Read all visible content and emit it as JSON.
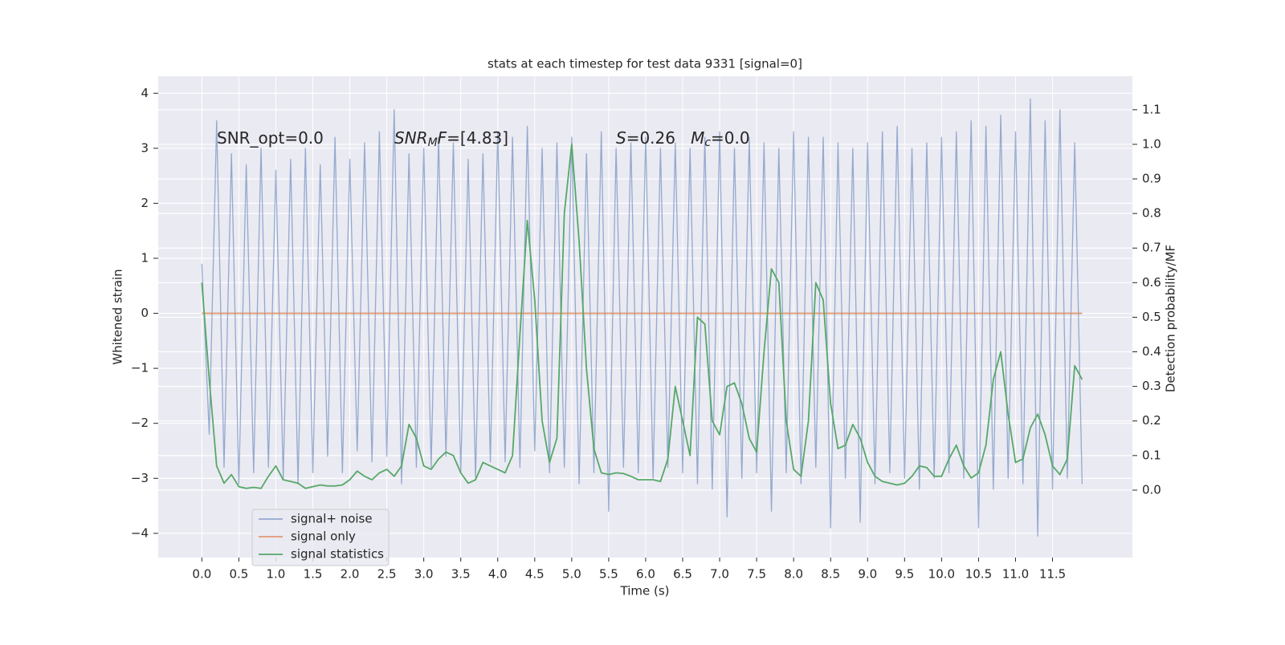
{
  "chart_data": {
    "type": "line",
    "title": "stats at each timestep for test data 9331 [signal=0]",
    "xlabel": "Time (s)",
    "ylabel": "Whitened strain",
    "y2label": "Detection probability/MF",
    "annotations": [
      [
        {
          "text": "SNR_opt=0.0"
        }
      ],
      [
        {
          "text": "SNR",
          "italic": true
        },
        {
          "text": "M",
          "italic": true,
          "sub": true
        },
        {
          "text": "F",
          "italic": true
        },
        {
          "text": "=[4.83]"
        }
      ],
      [
        {
          "text": "S",
          "italic": true
        },
        {
          "text": "=0.26   "
        },
        {
          "text": "M",
          "italic": true
        },
        {
          "text": "c",
          "italic": true,
          "sub": true
        },
        {
          "text": "=0.0"
        }
      ]
    ],
    "x": [
      0,
      0.1,
      0.2,
      0.3,
      0.4,
      0.5,
      0.6,
      0.7,
      0.8,
      0.9,
      1,
      1.1,
      1.2,
      1.3,
      1.4,
      1.5,
      1.6,
      1.7,
      1.8,
      1.9,
      2,
      2.1,
      2.2,
      2.3,
      2.4,
      2.5,
      2.6,
      2.7,
      2.8,
      2.9,
      3,
      3.1,
      3.2,
      3.3,
      3.4,
      3.5,
      3.6,
      3.7,
      3.8,
      3.9,
      4,
      4.1,
      4.2,
      4.3,
      4.4,
      4.5,
      4.6,
      4.7,
      4.8,
      4.9,
      5,
      5.1,
      5.2,
      5.3,
      5.4,
      5.5,
      5.6,
      5.7,
      5.8,
      5.9,
      6,
      6.1,
      6.2,
      6.3,
      6.4,
      6.5,
      6.6,
      6.7,
      6.8,
      6.9,
      7,
      7.1,
      7.2,
      7.3,
      7.4,
      7.5,
      7.6,
      7.7,
      7.8,
      7.9,
      8,
      8.1,
      8.2,
      8.3,
      8.4,
      8.5,
      8.6,
      8.7,
      8.8,
      8.9,
      9,
      9.1,
      9.2,
      9.3,
      9.4,
      9.5,
      9.6,
      9.7,
      9.8,
      9.9,
      10,
      10.1,
      10.2,
      10.3,
      10.4,
      10.5,
      10.6,
      10.7,
      10.8,
      10.9,
      11,
      11.1,
      11.2,
      11.3,
      11.4,
      11.5,
      11.6,
      11.7,
      11.8,
      11.9
    ],
    "series": [
      {
        "name": "signal+ noise",
        "color": "#4c72b0",
        "opacity": 0.55,
        "axis": "y",
        "values": [
          0.9,
          -2.2,
          3.5,
          -2.8,
          2.9,
          -3.1,
          2.7,
          -2.9,
          3.0,
          -2.8,
          2.6,
          -3.0,
          2.8,
          -3.1,
          3.0,
          -2.9,
          2.7,
          -2.6,
          3.2,
          -2.9,
          2.8,
          -2.5,
          3.1,
          -2.7,
          3.3,
          -2.6,
          3.7,
          -3.1,
          2.9,
          -2.8,
          3.0,
          -2.8,
          3.2,
          -2.6,
          3.1,
          -2.9,
          2.8,
          -3.0,
          2.9,
          -2.7,
          3.3,
          -2.7,
          3.2,
          -2.8,
          3.4,
          -2.5,
          3.0,
          -2.9,
          3.1,
          -2.8,
          3.2,
          -3.1,
          2.9,
          -2.9,
          3.3,
          -3.6,
          3.0,
          -2.8,
          3.1,
          -2.9,
          3.2,
          -3.0,
          3.0,
          -2.8,
          3.1,
          -2.9,
          3.0,
          -3.1,
          3.2,
          -3.2,
          3.3,
          -3.7,
          3.0,
          -3.0,
          3.2,
          -2.9,
          3.1,
          -3.6,
          3.0,
          -2.9,
          3.3,
          -3.1,
          3.2,
          -2.8,
          3.2,
          -3.9,
          3.1,
          -3.0,
          3.0,
          -3.8,
          3.1,
          -3.1,
          3.3,
          -2.9,
          3.4,
          -3.0,
          3.0,
          -3.2,
          3.1,
          -3.0,
          3.2,
          -2.9,
          3.3,
          -3.0,
          3.5,
          -3.9,
          3.4,
          -3.2,
          3.6,
          -3.0,
          3.3,
          -3.1,
          3.9,
          -4.05,
          3.5,
          -3.2,
          3.7,
          -3.0,
          3.1,
          -3.1
        ]
      },
      {
        "name": "signal only",
        "color": "#dd8452",
        "opacity": 0.8,
        "axis": "y",
        "values": [
          0,
          0,
          0,
          0,
          0,
          0,
          0,
          0,
          0,
          0,
          0,
          0,
          0,
          0,
          0,
          0,
          0,
          0,
          0,
          0,
          0,
          0,
          0,
          0,
          0,
          0,
          0,
          0,
          0,
          0,
          0,
          0,
          0,
          0,
          0,
          0,
          0,
          0,
          0,
          0,
          0,
          0,
          0,
          0,
          0,
          0,
          0,
          0,
          0,
          0,
          0,
          0,
          0,
          0,
          0,
          0,
          0,
          0,
          0,
          0,
          0,
          0,
          0,
          0,
          0,
          0,
          0,
          0,
          0,
          0,
          0,
          0,
          0,
          0,
          0,
          0,
          0,
          0,
          0,
          0,
          0,
          0,
          0,
          0,
          0,
          0,
          0,
          0,
          0,
          0,
          0,
          0,
          0,
          0,
          0,
          0,
          0,
          0,
          0,
          0,
          0,
          0,
          0,
          0,
          0,
          0,
          0,
          0,
          0,
          0,
          0,
          0,
          0,
          0,
          0,
          0,
          0,
          0,
          0,
          0
        ]
      },
      {
        "name": "signal statistics",
        "color": "#55a868",
        "opacity": 1,
        "axis": "y2",
        "values": [
          0.6,
          0.32,
          0.07,
          0.02,
          0.045,
          0.01,
          0.005,
          0.008,
          0.005,
          0.04,
          0.07,
          0.03,
          0.025,
          0.02,
          0.005,
          0.01,
          0.015,
          0.012,
          0.012,
          0.015,
          0.03,
          0.055,
          0.04,
          0.03,
          0.05,
          0.06,
          0.04,
          0.07,
          0.19,
          0.15,
          0.07,
          0.06,
          0.09,
          0.11,
          0.1,
          0.05,
          0.02,
          0.03,
          0.08,
          0.07,
          0.06,
          0.05,
          0.1,
          0.45,
          0.78,
          0.55,
          0.2,
          0.08,
          0.15,
          0.8,
          1.0,
          0.72,
          0.35,
          0.12,
          0.05,
          0.045,
          0.05,
          0.048,
          0.04,
          0.03,
          0.03,
          0.03,
          0.025,
          0.09,
          0.3,
          0.2,
          0.1,
          0.5,
          0.48,
          0.2,
          0.16,
          0.3,
          0.31,
          0.25,
          0.15,
          0.11,
          0.4,
          0.64,
          0.6,
          0.2,
          0.06,
          0.04,
          0.2,
          0.6,
          0.55,
          0.25,
          0.12,
          0.13,
          0.19,
          0.15,
          0.08,
          0.04,
          0.025,
          0.02,
          0.015,
          0.02,
          0.04,
          0.07,
          0.065,
          0.04,
          0.04,
          0.09,
          0.13,
          0.07,
          0.035,
          0.05,
          0.13,
          0.32,
          0.4,
          0.22,
          0.08,
          0.09,
          0.18,
          0.22,
          0.16,
          0.07,
          0.045,
          0.09,
          0.36,
          0.32
        ]
      }
    ],
    "xlim": [
      -0.59,
      12.58
    ],
    "xticks": [
      {
        "value": 0,
        "label": "0.0"
      },
      0.5,
      {
        "value": 1,
        "label": "1.0"
      },
      1.5,
      {
        "value": 2,
        "label": "2.0"
      },
      2.5,
      {
        "value": 3,
        "label": "3.0"
      },
      3.5,
      {
        "value": 4,
        "label": "4.0"
      },
      4.5,
      {
        "value": 5,
        "label": "5.0"
      },
      5.5,
      {
        "value": 6,
        "label": "6.0"
      },
      6.5,
      {
        "value": 7,
        "label": "7.0"
      },
      7.5,
      {
        "value": 8,
        "label": "8.0"
      },
      8.5,
      {
        "value": 9,
        "label": "9.0"
      },
      9.5,
      {
        "value": 10,
        "label": "10.0"
      },
      10.5,
      {
        "value": 11,
        "label": "11.0"
      },
      11.5
    ],
    "ylim": [
      -4.44,
      4.31
    ],
    "yticks": [
      {
        "value": -4,
        "label": "−4"
      },
      {
        "value": -3,
        "label": "−3"
      },
      {
        "value": -2,
        "label": "−2"
      },
      {
        "value": -1,
        "label": "−1"
      },
      0,
      1,
      2,
      3,
      4
    ],
    "y2lim": [
      -0.195,
      1.197
    ],
    "y2ticks": [
      {
        "value": 0,
        "label": "0.0"
      },
      0.1,
      0.2,
      0.3,
      0.4,
      0.5,
      0.6,
      0.7,
      0.8,
      0.9,
      {
        "value": 1,
        "label": "1.0"
      },
      1.1
    ],
    "grid": true,
    "legend": "lower left"
  }
}
